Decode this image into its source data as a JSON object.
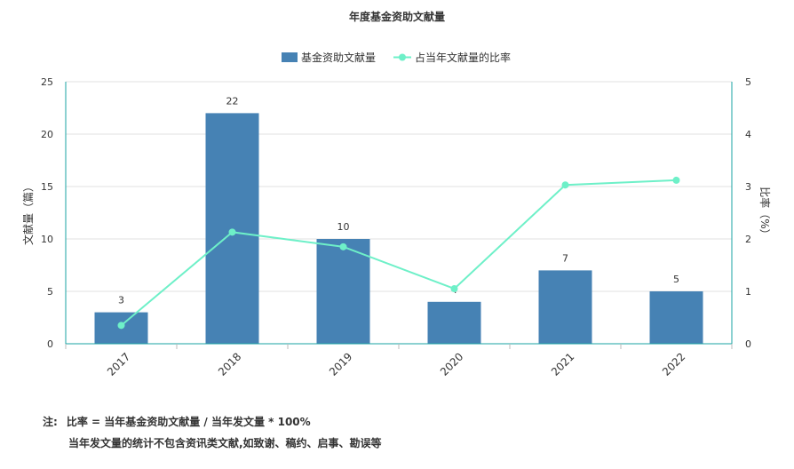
{
  "chart_data": {
    "type": "bar",
    "title": "年度基金资助文献量",
    "categories": [
      "2017",
      "2018",
      "2019",
      "2020",
      "2021",
      "2022"
    ],
    "series": [
      {
        "name": "基金资助文献量",
        "type": "bar",
        "axis": "left",
        "values": [
          3,
          22,
          10,
          4,
          7,
          5
        ],
        "data_labels": [
          "3",
          "22",
          "10",
          "4",
          "7",
          "5"
        ]
      },
      {
        "name": "占当年文献量的比率",
        "type": "line",
        "axis": "right",
        "values": [
          0.35,
          2.13,
          1.85,
          1.05,
          3.03,
          3.12
        ]
      }
    ],
    "ylabel_left": "文献量（篇）",
    "ylabel_right": "比率（%）",
    "ylim_left": [
      0,
      25
    ],
    "ylim_right": [
      0,
      5
    ],
    "yticks_left": [
      "0",
      "5",
      "10",
      "15",
      "20",
      "25"
    ],
    "yticks_right": [
      "0",
      "1",
      "2",
      "3",
      "4",
      "5"
    ],
    "legend_position": "top-center",
    "grid": true,
    "colors": {
      "bar": "#4682b4",
      "line": "#6ef0c8",
      "axis_right": "#1aa3a3"
    }
  },
  "notes": {
    "label": "注:",
    "line1": "比率 = 当年基金资助文献量 / 当年发文量 * 100%",
    "line2": "当年发文量的统计不包含资讯类文献,如致谢、稿约、启事、勘误等"
  }
}
